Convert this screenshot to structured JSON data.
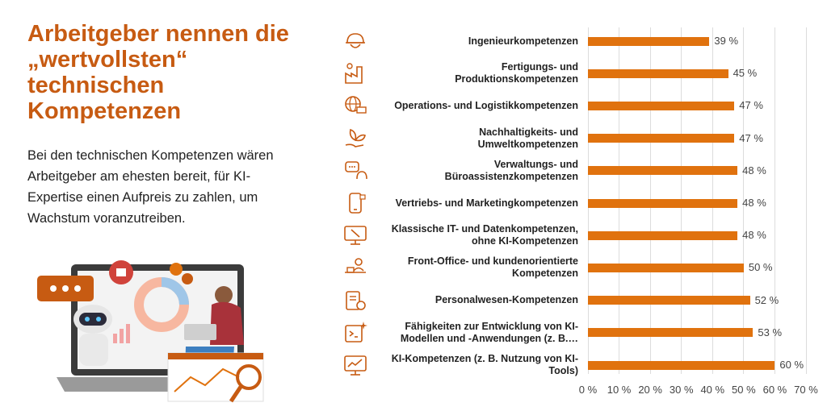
{
  "headline": "Arbeitgeber nennen die „wertvollsten“ technischen Kompetenzen",
  "body_text": "Bei den technischen Kompetenzen wären Arbeitgeber am ehesten bereit, für KI-Expertise einen Aufpreis zu zahlen, um Wachstum voranzutreiben.",
  "colors": {
    "accent": "#c75b12",
    "bar": "#e0720e",
    "text": "#222222",
    "grid": "#dcdcdc"
  },
  "icons": [
    "engineer-helmet-icon",
    "factory-gear-icon",
    "globe-truck-icon",
    "leaf-hand-icon",
    "chat-headset-icon",
    "smartphone-icon",
    "monitor-tools-icon",
    "desk-person-icon",
    "clipboard-gear-icon",
    "code-sparkle-icon",
    "monitor-chart-icon"
  ],
  "chart_data": {
    "type": "bar",
    "orientation": "horizontal",
    "title": "",
    "xlabel": "",
    "ylabel": "",
    "categories": [
      "Ingenieurkompetenzen",
      "Fertigungs- und\nProduktionskompetenzen",
      "Operations- und Logistikkompetenzen",
      "Nachhaltigkeits- und\nUmweltkompetenzen",
      "Verwaltungs- und\nBüroassistenzkompetenzen",
      "Vertriebs- und Marketingkompetenzen",
      "Klassische IT- und Datenkompetenzen,\nohne KI-Kompetenzen",
      "Front-Office- und kundenorientierte\nKompetenzen",
      "Personalwesen-Kompetenzen",
      "Fähigkeiten zur Entwicklung von KI-\nModellen und -Anwendungen (z. B.…",
      "KI-Kompetenzen (z. B. Nutzung von KI-\nTools)"
    ],
    "values": [
      39,
      45,
      47,
      47,
      48,
      48,
      48,
      50,
      52,
      53,
      60
    ],
    "value_labels": [
      "39 %",
      "45 %",
      "47 %",
      "47 %",
      "48 %",
      "48 %",
      "48 %",
      "50 %",
      "52 %",
      "53 %",
      "60 %"
    ],
    "xlim": [
      0,
      70
    ],
    "ticks": [
      0,
      10,
      20,
      30,
      40,
      50,
      60,
      70
    ],
    "tick_labels": [
      "0 %",
      "10 %",
      "20 %",
      "30 %",
      "40 %",
      "50 %",
      "60 %",
      "70 %"
    ],
    "grid": true,
    "legend": "none"
  }
}
